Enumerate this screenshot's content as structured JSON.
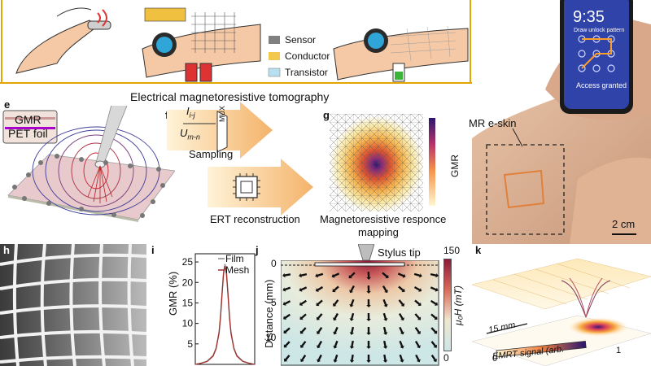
{
  "top": {
    "legend": [
      "Sensor",
      "Conductor",
      "Transistor"
    ],
    "legend_colors": [
      "#808080",
      "#f2c94c",
      "#b8dff0"
    ],
    "caption": "Electrical magnetoresistive tomography"
  },
  "panel_e": {
    "label": "e",
    "gmr": "GMR",
    "pet": "PET foil"
  },
  "panel_f": {
    "label": "f",
    "current": "I",
    "current_sub": "i-j",
    "voltage": "U",
    "voltage_sub": "m-n",
    "mux": "MUX",
    "sampling": "Sampling",
    "ert": "ERT reconstruction"
  },
  "panel_g": {
    "label": "g",
    "colorbar_label": "GMR",
    "caption_line1": "Magnetoresistive responce",
    "caption_line2": "mapping"
  },
  "phone": {
    "time": "9:35",
    "prompt": "Draw unlock pattern",
    "status": "Access granted"
  },
  "photo": {
    "eskin_label": "MR e-skin",
    "scale": "2 cm"
  },
  "panel_h": {
    "label": "h"
  },
  "panel_i": {
    "label": "i",
    "chart_data": {
      "type": "line",
      "ylabel": "GMR (%)",
      "ylim": [
        0,
        27
      ],
      "yticks": [
        25,
        20,
        15,
        10,
        5
      ],
      "series": [
        {
          "name": "Film",
          "color": "#888888",
          "x": [
            -1,
            -0.8,
            -0.6,
            -0.4,
            -0.3,
            -0.2,
            -0.15,
            -0.1,
            -0.05,
            0,
            0.05,
            0.1,
            0.15,
            0.2,
            0.3,
            0.4,
            0.6,
            0.8,
            1
          ],
          "values": [
            0,
            0.3,
            0.8,
            2.2,
            4,
            8,
            12,
            17.5,
            22.5,
            24.5,
            22.5,
            17.5,
            12,
            8,
            4,
            2.2,
            0.8,
            0.3,
            0
          ]
        },
        {
          "name": "Mesh",
          "color": "#a0302a",
          "x": [
            -1,
            -0.8,
            -0.6,
            -0.4,
            -0.3,
            -0.2,
            -0.15,
            -0.1,
            -0.05,
            0,
            0.05,
            0.1,
            0.15,
            0.2,
            0.3,
            0.4,
            0.6,
            0.8,
            1
          ],
          "values": [
            0,
            0.3,
            0.7,
            2,
            3.8,
            7.6,
            11.5,
            17,
            22,
            24,
            22,
            17,
            11.5,
            7.6,
            3.8,
            2,
            0.7,
            0.3,
            0
          ]
        }
      ]
    }
  },
  "panel_j": {
    "label": "j",
    "stylus": "Stylus tip",
    "ylabel": "Distance (mm)",
    "yticks": [
      "0",
      "5",
      "10"
    ],
    "colorbar_max": "150",
    "colorbar_min": "0",
    "colorbar_label": "μ₀H (mT)"
  },
  "panel_k": {
    "label": "k",
    "scale": "15 mm",
    "signal_label": "EMRT signal (arb.",
    "cb_min": "0",
    "cb_max": "1"
  }
}
